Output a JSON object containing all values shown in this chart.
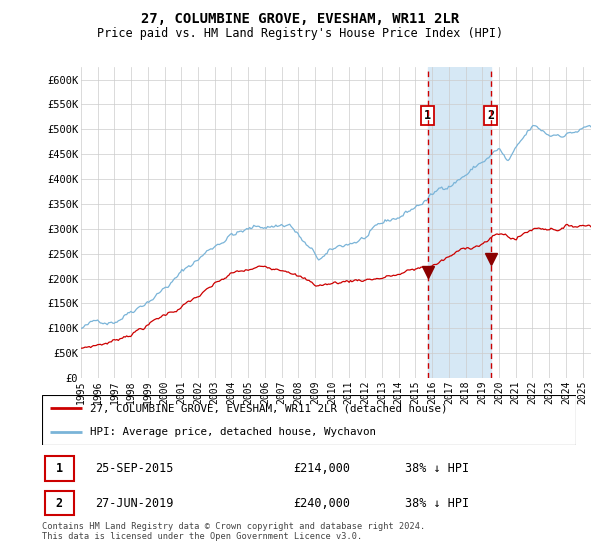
{
  "title": "27, COLUMBINE GROVE, EVESHAM, WR11 2LR",
  "subtitle": "Price paid vs. HM Land Registry's House Price Index (HPI)",
  "ylabel_ticks": [
    "£0",
    "£50K",
    "£100K",
    "£150K",
    "£200K",
    "£250K",
    "£300K",
    "£350K",
    "£400K",
    "£450K",
    "£500K",
    "£550K",
    "£600K"
  ],
  "ytick_values": [
    0,
    50000,
    100000,
    150000,
    200000,
    250000,
    300000,
    350000,
    400000,
    450000,
    500000,
    550000,
    600000
  ],
  "ylim": [
    0,
    625000
  ],
  "xlim_start": 1995.0,
  "xlim_end": 2025.5,
  "hpi_color": "#7ab4d8",
  "price_color": "#cc0000",
  "vline_color": "#cc0000",
  "shading_color": "#d6e8f5",
  "transaction1_date": 2015.73,
  "transaction1_price": 214000,
  "transaction2_date": 2019.49,
  "transaction2_price": 240000,
  "legend_label_price": "27, COLUMBINE GROVE, EVESHAM, WR11 2LR (detached house)",
  "legend_label_hpi": "HPI: Average price, detached house, Wychavon",
  "table_row1": [
    "1",
    "25-SEP-2015",
    "£214,000",
    "38% ↓ HPI"
  ],
  "table_row2": [
    "2",
    "27-JUN-2019",
    "£240,000",
    "38% ↓ HPI"
  ],
  "footnote": "Contains HM Land Registry data © Crown copyright and database right 2024.\nThis data is licensed under the Open Government Licence v3.0.",
  "background_color": "#ffffff",
  "grid_color": "#cccccc"
}
